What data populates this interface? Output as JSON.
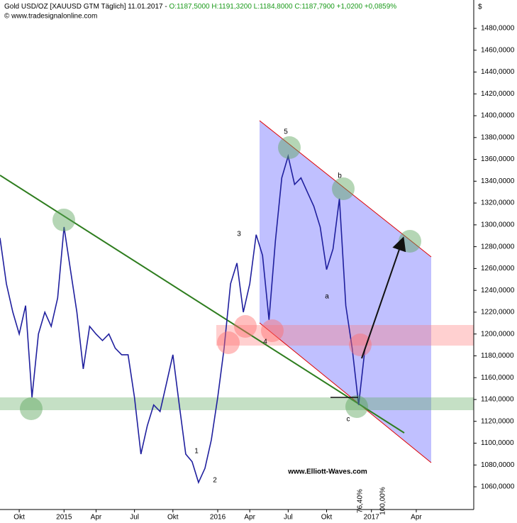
{
  "chart_data": {
    "type": "line",
    "title": "Gold USD/OZ [XAUUSD GTM  Täglich] 11.01.2017 -",
    "quote": "O:1187,5000 H:1191,3200 L:1184,8000 C:1187,7900 +1,0200 +0,0859%",
    "source": "© www.tradesignalonline.com",
    "y_unit": "$",
    "categories": [
      null,
      null,
      null,
      "Okt",
      null,
      null,
      null,
      null,
      null,
      null,
      "2015",
      null,
      null,
      null,
      null,
      "Apr",
      null,
      null,
      null,
      null,
      null,
      "Jul",
      null,
      null,
      null,
      null,
      null,
      "Okt",
      null,
      null,
      null,
      null,
      null,
      null,
      "2016",
      null,
      null,
      null,
      null,
      "Apr",
      null,
      null,
      null,
      null,
      null,
      "Jul",
      null,
      null,
      null,
      null,
      null,
      "Okt",
      null,
      null,
      null,
      null,
      null,
      null,
      "2017",
      null,
      null,
      null,
      null,
      null,
      null,
      "Apr",
      null,
      null,
      null,
      null,
      null,
      null,
      null,
      null
    ],
    "series": [
      {
        "name": "Gold USD/OZ",
        "color": "#1f1f9e",
        "values": [
          1288,
          1246,
          1220,
          1200,
          1226,
          1142,
          1200,
          1220,
          1207,
          1233,
          1298,
          1259,
          1220,
          1168,
          1207,
          1200,
          1194,
          1200,
          1187,
          1181,
          1181,
          1142,
          1090,
          1116,
          1135,
          1129,
          1155,
          1181,
          1135,
          1090,
          1083,
          1064,
          1077,
          1103,
          1142,
          1187,
          1246,
          1265,
          1220,
          1246,
          1291,
          1272,
          1213,
          1285,
          1343,
          1363,
          1337,
          1343,
          1330,
          1317,
          1298,
          1259,
          1278,
          1324,
          1226,
          1187,
          1135,
          1187,
          null,
          null,
          null,
          null,
          null,
          null,
          null,
          null,
          null,
          null,
          null,
          null,
          null,
          null,
          null,
          null
        ]
      }
    ],
    "ylim": [
      1039.2,
      1499.5
    ],
    "yticks": [
      {
        "value": 1060,
        "label": "1060,0000"
      },
      {
        "value": 1080,
        "label": "1080,0000"
      },
      {
        "value": 1100,
        "label": "1100,0000"
      },
      {
        "value": 1120,
        "label": "1120,0000"
      },
      {
        "value": 1140,
        "label": "1140,0000"
      },
      {
        "value": 1160,
        "label": "1160,0000"
      },
      {
        "value": 1180,
        "label": "1180,0000"
      },
      {
        "value": 1200,
        "label": "1200,0000"
      },
      {
        "value": 1220,
        "label": "1220,0000"
      },
      {
        "value": 1240,
        "label": "1240,0000"
      },
      {
        "value": 1260,
        "label": "1260,0000"
      },
      {
        "value": 1280,
        "label": "1280,0000"
      },
      {
        "value": 1300,
        "label": "1300,0000"
      },
      {
        "value": 1320,
        "label": "1320,0000"
      },
      {
        "value": 1340,
        "label": "1340,0000"
      },
      {
        "value": 1360,
        "label": "1360,0000"
      },
      {
        "value": 1380,
        "label": "1380,0000"
      },
      {
        "value": 1400,
        "label": "1400,0000"
      },
      {
        "value": 1420,
        "label": "1420,0000"
      },
      {
        "value": 1440,
        "label": "1440,0000"
      },
      {
        "value": 1460,
        "label": "1460,0000"
      },
      {
        "value": 1480,
        "label": "1480,0000"
      }
    ],
    "grid": false,
    "annotations": [
      "5",
      "3",
      "4",
      "1",
      "2",
      "b",
      "a",
      "c",
      "www.Elliott-Waves.com",
      "76,40%",
      "100,00%"
    ]
  }
}
